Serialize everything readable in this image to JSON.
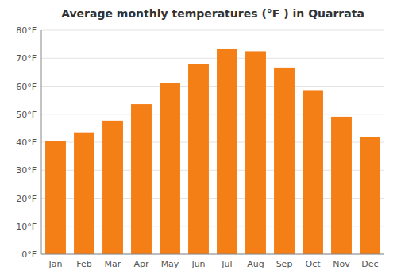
{
  "chart_data": {
    "type": "bar",
    "title": "Average monthly temperatures (°F ) in Quarrata",
    "categories": [
      "Jan",
      "Feb",
      "Mar",
      "Apr",
      "May",
      "Jun",
      "Jul",
      "Aug",
      "Sep",
      "Oct",
      "Nov",
      "Dec"
    ],
    "values": [
      40.5,
      43.5,
      47.7,
      53.6,
      61.0,
      68.0,
      73.2,
      72.5,
      66.7,
      58.6,
      49.1,
      41.9
    ],
    "color": "#F57F17",
    "ylim": [
      0,
      80
    ],
    "yticks": [
      {
        "value": 0,
        "label": "0°F"
      },
      {
        "value": 10,
        "label": "10°F"
      },
      {
        "value": 20,
        "label": "20°F"
      },
      {
        "value": 30,
        "label": "30°F"
      },
      {
        "value": 40,
        "label": "40°F"
      },
      {
        "value": 50,
        "label": "50°F"
      },
      {
        "value": 60,
        "label": "60°F"
      },
      {
        "value": 70,
        "label": "70°F"
      },
      {
        "value": 80,
        "label": "80°F"
      }
    ],
    "grid": true
  }
}
